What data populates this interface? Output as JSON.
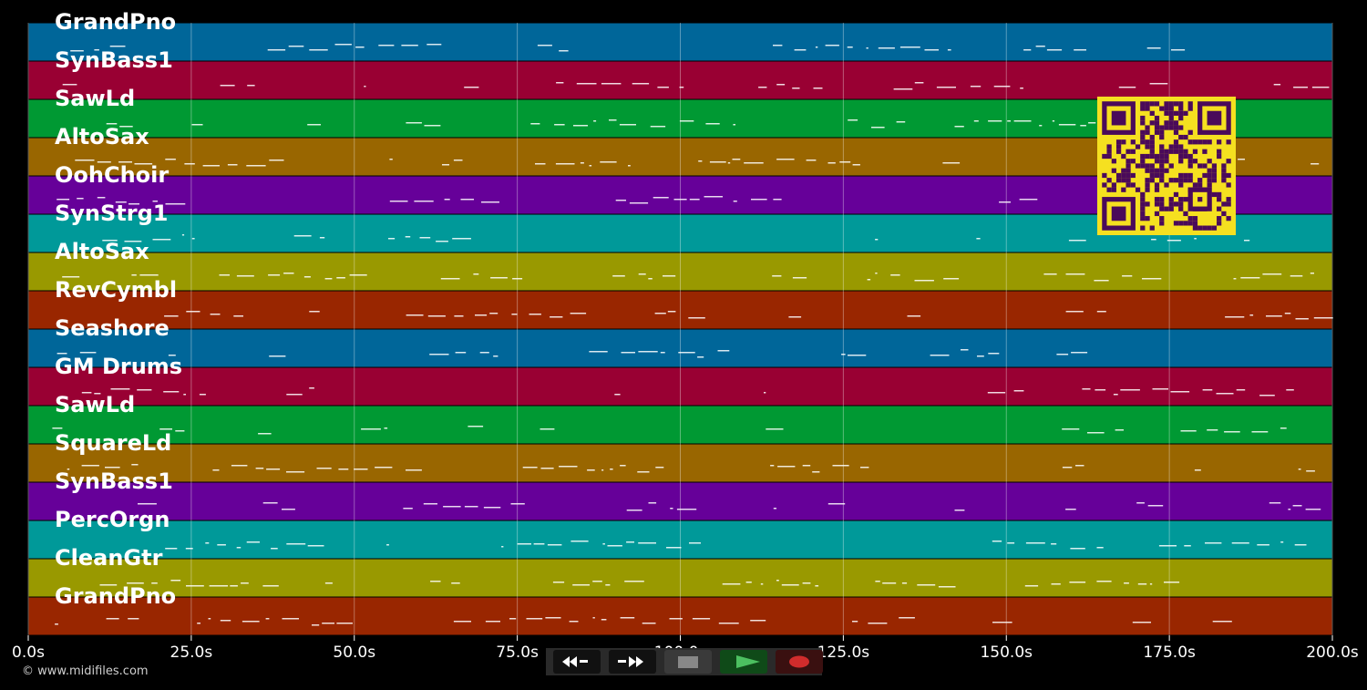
{
  "app": {
    "copyright": "© www.midifiles.com"
  },
  "timeline": {
    "ticks": [
      "0.0s",
      "25.0s",
      "50.0s",
      "75.0s",
      "100.0s",
      "125.0s",
      "150.0s",
      "175.0s",
      "200.0s"
    ]
  },
  "tracks": [
    {
      "name": "GrandPno",
      "color": "#006699"
    },
    {
      "name": "SynBass1",
      "color": "#990033"
    },
    {
      "name": "SawLd",
      "color": "#009933"
    },
    {
      "name": "AltoSax",
      "color": "#996600"
    },
    {
      "name": "OohChoir",
      "color": "#660099"
    },
    {
      "name": "SynStrg1",
      "color": "#009999"
    },
    {
      "name": "AltoSax",
      "color": "#999900"
    },
    {
      "name": "RevCymbl",
      "color": "#992600"
    },
    {
      "name": "Seashore",
      "color": "#006699"
    },
    {
      "name": "GM Drums",
      "color": "#990033"
    },
    {
      "name": "SawLd",
      "color": "#009933"
    },
    {
      "name": "SquareLd",
      "color": "#996600"
    },
    {
      "name": "SynBass1",
      "color": "#660099"
    },
    {
      "name": "PercOrgn",
      "color": "#009999"
    },
    {
      "name": "CleanGtr",
      "color": "#999900"
    },
    {
      "name": "GrandPno",
      "color": "#992600"
    }
  ],
  "transport": {
    "buttons": [
      {
        "name": "rewind-icon"
      },
      {
        "name": "fast-forward-icon"
      },
      {
        "name": "stop-icon"
      },
      {
        "name": "play-icon"
      },
      {
        "name": "record-icon"
      }
    ]
  },
  "qr_code": {
    "colors": {
      "fg": "#4a0a5a",
      "bg": "#f5e020"
    }
  }
}
